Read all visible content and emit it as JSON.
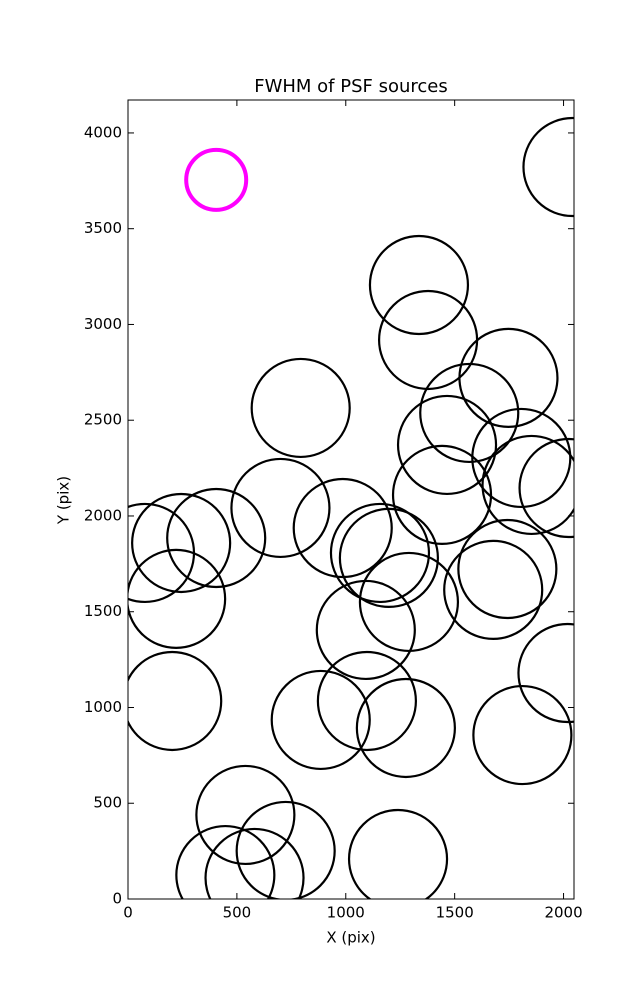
{
  "chart_data": {
    "type": "scatter",
    "title": "FWHM of PSF sources",
    "x_label": "X (pix)",
    "y_label": "Y (pix)",
    "xlim": [
      0,
      2048
    ],
    "ylim": [
      0,
      4172
    ],
    "xticks": [
      0,
      500,
      1000,
      1500,
      2000
    ],
    "yticks": [
      0,
      500,
      1000,
      1500,
      2000,
      2500,
      3000,
      3500,
      4000
    ],
    "series": [
      {
        "color": "#000000",
        "x": [
          2041,
          1336,
          1378,
          1747,
          1567,
          793,
          1465,
          1806,
          1853,
          2023,
          1442,
          700,
          78,
          244,
          405,
          986,
          1157,
          1198,
          1742,
          1677,
          221,
          1290,
          1092,
          2018,
          203,
          1097,
          885,
          1276,
          1811,
          539,
          724,
          447,
          581,
          1240
        ],
        "values": [
          3822,
          3206,
          2919,
          2721,
          2538,
          2564,
          2371,
          2303,
          2162,
          2146,
          2110,
          2042,
          1807,
          1859,
          1885,
          1937,
          1807,
          1781,
          1723,
          1614,
          1567,
          1551,
          1405,
          1180,
          1034,
          1034,
          935,
          893,
          856,
          439,
          251,
          125,
          110,
          209
        ]
      },
      {
        "color": "#ff00ff",
        "x": [
          405
        ],
        "values": [
          3755
        ]
      }
    ]
  }
}
